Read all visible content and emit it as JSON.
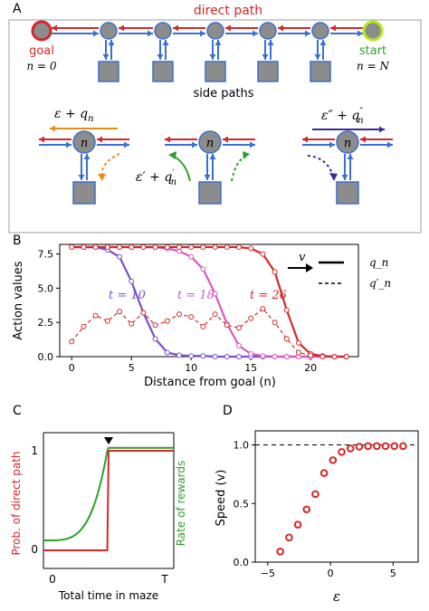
{
  "panels": {
    "a": {
      "label": "A",
      "direct_path": "direct path",
      "goal": "goal",
      "start": "start",
      "n0": "n = 0",
      "nN": "n = N",
      "side_paths": "side paths",
      "node_letter": "n",
      "expr_left": "ε + q",
      "expr_left_sub": "n",
      "expr_mid": "ε′ + q",
      "expr_mid_sub": "n",
      "expr_mid_prime": "′",
      "expr_right": "ε″ + q",
      "expr_right_sub": "n",
      "expr_right_prime": "″"
    },
    "b": {
      "label": "B",
      "ylabel": "Action values",
      "xlabel": "Distance from goal (n)",
      "v_label": "v",
      "legend": [
        "q_n",
        "q′_n"
      ],
      "t_labels": [
        "t = 10",
        "t = 18",
        "t = 26"
      ],
      "xticks": [
        "0",
        "5",
        "10",
        "15",
        "20"
      ],
      "yticks": [
        "0.0",
        "2.5",
        "5.0",
        "7.5"
      ]
    },
    "c": {
      "label": "C",
      "ylabel_left": "Prob. of direct path",
      "ylabel_right": "Rate of rewards",
      "xlabel": "Total time in maze",
      "xticks": [
        "0",
        "T"
      ],
      "yticks": [
        "0",
        "1"
      ]
    },
    "d": {
      "label": "D",
      "ylabel": "Speed (v)",
      "xlabel": "ε",
      "xticks": [
        "−5",
        "0",
        "5"
      ],
      "yticks": [
        "0.0",
        "0.5",
        "1.0"
      ]
    }
  },
  "colors": {
    "red": "#d62728",
    "blue": "#3b6fd1",
    "green": "#2ca02c",
    "orange": "#e88b1a",
    "purple": "#7b4fc9",
    "pink": "#d459c4",
    "navy": "#3a2a9a",
    "node": "#8c8c8c",
    "box": "#8c8c8c"
  },
  "chart_data": [
    {
      "panel": "B",
      "type": "line",
      "xlabel": "Distance from goal (n)",
      "ylabel": "Action values",
      "xlim": [
        -1,
        24
      ],
      "ylim": [
        0,
        8.2
      ],
      "series": [
        {
          "name": "t = 10",
          "style": "solid",
          "x": [
            0,
            1,
            2,
            3,
            4,
            5,
            6,
            7,
            8,
            9,
            10,
            11,
            12,
            13,
            14,
            15,
            16,
            17,
            18,
            19,
            20,
            21,
            22,
            23
          ],
          "y": [
            8,
            8,
            8,
            7.8,
            7.3,
            5.5,
            3.2,
            1.3,
            0.3,
            0.1,
            0.05,
            0.05,
            0,
            0,
            0,
            0,
            0,
            0,
            0,
            0,
            0,
            0,
            0,
            0
          ]
        },
        {
          "name": "t = 18",
          "style": "solid",
          "x": [
            0,
            1,
            2,
            3,
            4,
            5,
            6,
            7,
            8,
            9,
            10,
            11,
            12,
            13,
            14,
            15,
            16,
            17,
            18,
            19,
            20,
            21,
            22,
            23
          ],
          "y": [
            8,
            8,
            8,
            8,
            8,
            8,
            8,
            8,
            7.9,
            7.7,
            7.3,
            6.4,
            4.6,
            2.4,
            0.8,
            0.2,
            0.05,
            0,
            0,
            0,
            0,
            0,
            0,
            0
          ]
        },
        {
          "name": "t = 26",
          "style": "solid",
          "x": [
            0,
            1,
            2,
            3,
            4,
            5,
            6,
            7,
            8,
            9,
            10,
            11,
            12,
            13,
            14,
            15,
            16,
            17,
            18,
            19,
            20,
            21,
            22,
            23
          ],
          "y": [
            8,
            8,
            8,
            8,
            8,
            8,
            8,
            8,
            8,
            8,
            8,
            8,
            8,
            8,
            8,
            7.9,
            7.5,
            6.2,
            3.4,
            1.0,
            0.2,
            0.05,
            0,
            0
          ]
        },
        {
          "name": "t = 26 q′",
          "style": "dashed",
          "x": [
            0,
            1,
            2,
            3,
            4,
            5,
            6,
            7,
            8,
            9,
            10,
            11,
            12,
            13,
            14,
            15,
            16,
            17,
            18,
            19,
            20,
            21,
            22,
            23
          ],
          "y": [
            1.1,
            2.2,
            3.0,
            2.6,
            3.3,
            2.4,
            3.2,
            2.3,
            2.6,
            3.1,
            2.9,
            2.2,
            3.1,
            2.3,
            2.1,
            2.8,
            3.5,
            2.5,
            1.3,
            0.3,
            0.1,
            0,
            0,
            0
          ]
        }
      ]
    },
    {
      "panel": "C",
      "type": "line",
      "xlabel": "Total time in maze",
      "series": [
        {
          "name": "Prob. of direct path",
          "x": [
            0,
            0.49,
            0.5,
            1
          ],
          "y": [
            0,
            0,
            1,
            1
          ]
        },
        {
          "name": "Rate of rewards",
          "x": [
            0,
            0.1,
            0.2,
            0.3,
            0.38,
            0.44,
            0.48,
            0.5,
            1
          ],
          "y": [
            0.1,
            0.15,
            0.22,
            0.32,
            0.45,
            0.6,
            0.78,
            1.03,
            1.03
          ]
        }
      ]
    },
    {
      "panel": "D",
      "type": "scatter",
      "xlabel": "ε",
      "ylabel": "Speed (v)",
      "xlim": [
        -6,
        7
      ],
      "ylim": [
        0,
        1.12
      ],
      "asymptote": 1.0,
      "x": [
        -4,
        -3.3,
        -2.6,
        -1.9,
        -1.2,
        -0.5,
        0.2,
        0.9,
        1.6,
        2.3,
        3,
        3.7,
        4.4,
        5.1,
        5.8
      ],
      "y": [
        0.09,
        0.21,
        0.32,
        0.45,
        0.58,
        0.76,
        0.87,
        0.94,
        0.97,
        0.985,
        0.99,
        0.99,
        0.99,
        0.99,
        0.99
      ]
    }
  ]
}
